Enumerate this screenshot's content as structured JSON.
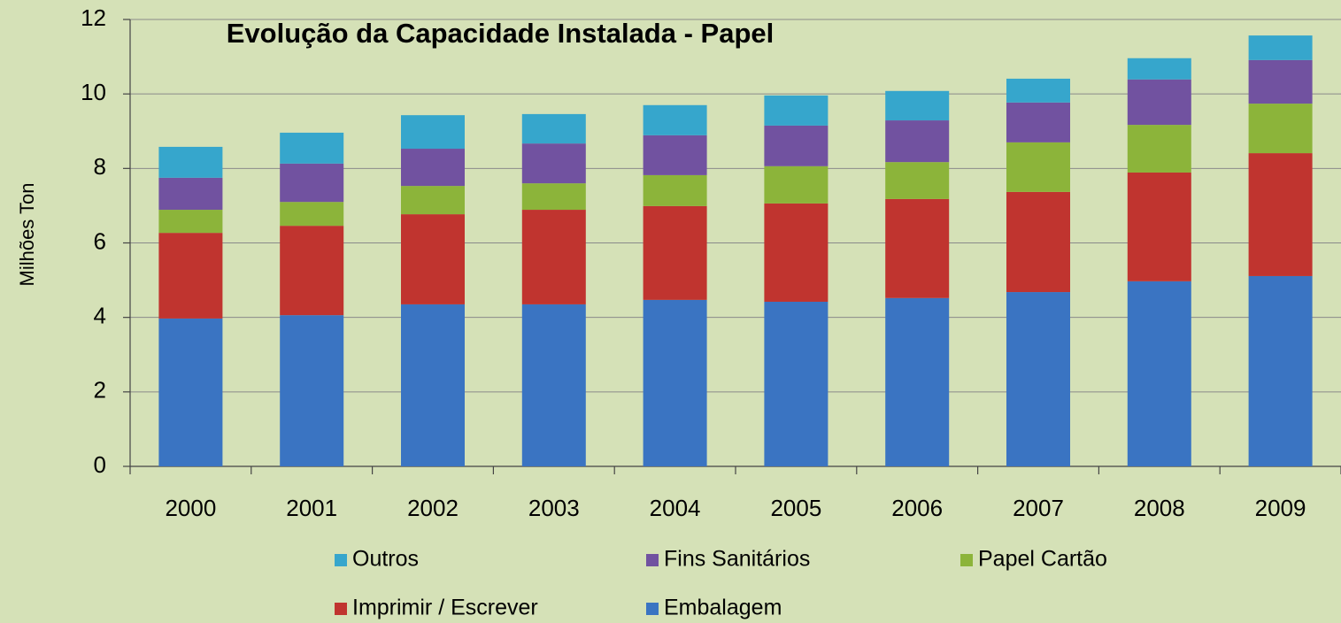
{
  "chart_data": {
    "type": "stacked_bar",
    "title": "Evolução da Capacidade Instalada - Papel",
    "y_label": "Milhões Ton",
    "categories": [
      "2000",
      "2001",
      "2002",
      "2003",
      "2004",
      "2005",
      "2006",
      "2007",
      "2008",
      "2009"
    ],
    "series": [
      {
        "name": "Embalagem",
        "color": "#3a74c2",
        "values": [
          3.97,
          4.06,
          4.35,
          4.35,
          4.47,
          4.42,
          4.52,
          4.68,
          4.97,
          5.11
        ]
      },
      {
        "name": "Imprimir / Escrever",
        "color": "#c0342f",
        "values": [
          2.3,
          2.4,
          2.42,
          2.54,
          2.52,
          2.64,
          2.66,
          2.69,
          2.92,
          3.3
        ]
      },
      {
        "name": "Papel Cartão",
        "color": "#8cb43a",
        "values": [
          0.62,
          0.64,
          0.76,
          0.71,
          0.83,
          1.0,
          0.99,
          1.33,
          1.28,
          1.33
        ]
      },
      {
        "name": "Fins Sanitários",
        "color": "#7152a0",
        "values": [
          0.86,
          1.03,
          1.0,
          1.07,
          1.07,
          1.09,
          1.12,
          1.07,
          1.22,
          1.17
        ]
      },
      {
        "name": "Outros",
        "color": "#36a6cc",
        "values": [
          0.83,
          0.83,
          0.9,
          0.79,
          0.81,
          0.81,
          0.79,
          0.64,
          0.57,
          0.66
        ]
      }
    ],
    "ylim": [
      0,
      12
    ],
    "yticks": [
      0,
      2,
      4,
      6,
      8,
      10,
      12
    ],
    "grid": true
  }
}
